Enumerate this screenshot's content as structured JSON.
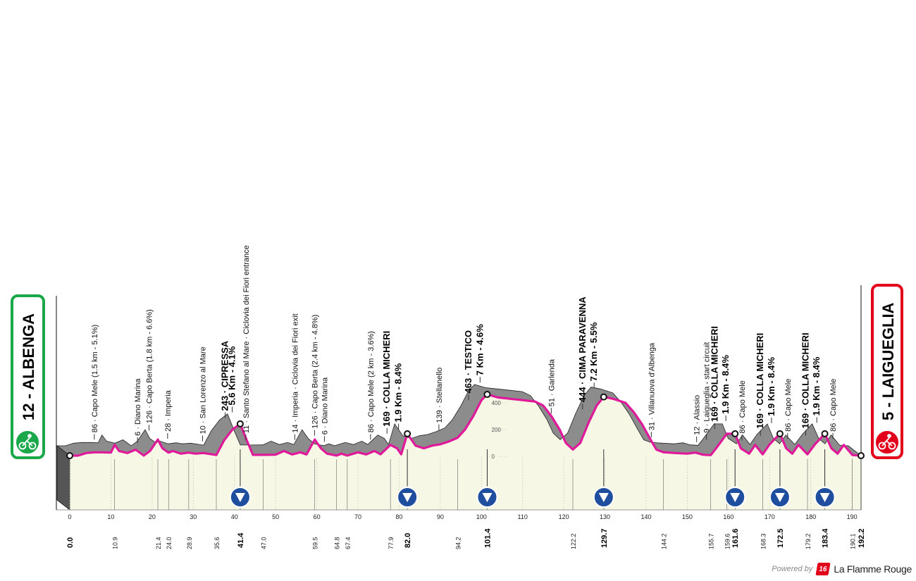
{
  "start": {
    "label": "12 - ALBENGA",
    "km": "0.0",
    "badge_color": "#1aa84a"
  },
  "finish": {
    "label": "5 - LAIGUEGLIA",
    "km": "192.2",
    "badge_color": "#e2001a"
  },
  "colors": {
    "profile": "#e0199a",
    "terrain": "#8c8c8c",
    "ground": "#f6f7e4",
    "badge_border_start": "#1aa84a",
    "badge_border_finish": "#e2001a"
  },
  "altitude_ticks": [
    "400",
    "200",
    "0"
  ],
  "km_ticks": [
    "0",
    "10",
    "20",
    "30",
    "40",
    "50",
    "60",
    "70",
    "80",
    "90",
    "100",
    "110",
    "120",
    "130",
    "140",
    "150",
    "160",
    "170",
    "180",
    "190"
  ],
  "waypoints": [
    {
      "km": 0.0,
      "label": "",
      "bold": false
    },
    {
      "km": 7.5,
      "label": "86 · Capo Mele (1.5 km - 5.1%)",
      "bold": false
    },
    {
      "km": 18.0,
      "label": "6 · Diano Marina",
      "bold": false
    },
    {
      "km": 20.8,
      "label": "126 · Capo Berta (1.8 km - 6.6%)",
      "bold": false
    },
    {
      "km": 25.3,
      "label": "28 · Imperia",
      "bold": false
    },
    {
      "km": 33.8,
      "label": "10 · San Lorenzo al Mare",
      "bold": false
    },
    {
      "km": 39.3,
      "label": "243 · CIPRESSA",
      "bold": true
    },
    {
      "km": 41.0,
      "label": "5.6 Km - 4.1%",
      "bold": true
    },
    {
      "km": 44.3,
      "label": "11 · Santo Stefano al Mare · Ciclovia dei Fiori entrance",
      "bold": false
    },
    {
      "km": 56.2,
      "label": "14 · Imperia · Ciclovia dei Fiori exit",
      "bold": false
    },
    {
      "km": 61.0,
      "label": "126 · Capo Berta (2.4 km - 4.8%)",
      "bold": false
    },
    {
      "km": 63.4,
      "label": "6 · Diano Marina",
      "bold": false
    },
    {
      "km": 74.6,
      "label": "86 · Capo Mele (2 km - 3.6%)",
      "bold": false
    },
    {
      "km": 78.6,
      "label": "169 · COLLA MICHERI",
      "bold": true
    },
    {
      "km": 81.4,
      "label": "1.9 Km - 8.4%",
      "bold": true
    },
    {
      "km": 91.2,
      "label": "139 · Stellanello",
      "bold": false
    },
    {
      "km": 98.4,
      "label": "463 · TESTICO",
      "bold": true
    },
    {
      "km": 101.2,
      "label": "7 Km - 4.6%",
      "bold": true
    },
    {
      "km": 118.5,
      "label": "51 · Garlenda",
      "bold": false
    },
    {
      "km": 126.1,
      "label": "444 · CIMA PARAVENNA",
      "bold": true
    },
    {
      "km": 128.9,
      "label": "7.2 Km - 5.5%",
      "bold": true
    },
    {
      "km": 142.8,
      "label": "31 · Villanuova d'Albenga",
      "bold": false
    },
    {
      "km": 153.8,
      "label": "12 · Alassio",
      "bold": false
    },
    {
      "km": 156.2,
      "label": "9 · Laigueglia - start circuit",
      "bold": false
    },
    {
      "km": 158.2,
      "label": "169 · COLLA MICHERI",
      "bold": true
    },
    {
      "km": 160.9,
      "label": "1.9 Km - 8.4%",
      "bold": true
    },
    {
      "km": 164.8,
      "label": "86 · Capo Mele",
      "bold": false
    },
    {
      "km": 169.3,
      "label": "169 · COLLA MICHERI",
      "bold": true
    },
    {
      "km": 172.0,
      "label": "1.9 Km - 8.4%",
      "bold": true
    },
    {
      "km": 175.9,
      "label": "86 · Capo Mele",
      "bold": false
    },
    {
      "km": 180.3,
      "label": "169 · COLLA MICHERI",
      "bold": true
    },
    {
      "km": 183.0,
      "label": "1.9 Km - 8.4%",
      "bold": true
    },
    {
      "km": 186.9,
      "label": "86 · Capo Mele",
      "bold": false
    }
  ],
  "km_markers": [
    {
      "km": 0.0,
      "label": "0.0",
      "bold": true
    },
    {
      "km": 10.9,
      "label": "10.9",
      "bold": false
    },
    {
      "km": 21.4,
      "label": "21.4",
      "bold": false
    },
    {
      "km": 24.0,
      "label": "24.0",
      "bold": false
    },
    {
      "km": 28.9,
      "label": "28.9",
      "bold": false
    },
    {
      "km": 35.6,
      "label": "35.6",
      "bold": false
    },
    {
      "km": 41.4,
      "label": "41.4",
      "bold": true
    },
    {
      "km": 47.0,
      "label": "47.0",
      "bold": false
    },
    {
      "km": 59.5,
      "label": "59.5",
      "bold": false
    },
    {
      "km": 64.8,
      "label": "64.8",
      "bold": false
    },
    {
      "km": 67.4,
      "label": "67.4",
      "bold": false
    },
    {
      "km": 77.9,
      "label": "77.9",
      "bold": false
    },
    {
      "km": 82.0,
      "label": "82.0",
      "bold": true
    },
    {
      "km": 94.2,
      "label": "94.2",
      "bold": false
    },
    {
      "km": 101.4,
      "label": "101.4",
      "bold": true
    },
    {
      "km": 122.2,
      "label": "122.2",
      "bold": false
    },
    {
      "km": 129.7,
      "label": "129.7",
      "bold": true
    },
    {
      "km": 144.2,
      "label": "144.2",
      "bold": false
    },
    {
      "km": 155.7,
      "label": "155.7",
      "bold": false
    },
    {
      "km": 159.6,
      "label": "159.6",
      "bold": false
    },
    {
      "km": 161.6,
      "label": "161.6",
      "bold": true
    },
    {
      "km": 168.3,
      "label": "168.3",
      "bold": false
    },
    {
      "km": 172.5,
      "label": "172.5",
      "bold": true
    },
    {
      "km": 179.2,
      "label": "179.2",
      "bold": false
    },
    {
      "km": 183.4,
      "label": "183.4",
      "bold": true
    },
    {
      "km": 190.1,
      "label": "190.1",
      "bold": false
    },
    {
      "km": 192.2,
      "label": "192.2",
      "bold": true
    }
  ],
  "climb_markers_km": [
    41.4,
    82.0,
    101.4,
    129.7,
    161.6,
    172.5,
    183.4
  ],
  "profile_points": [
    [
      0,
      5
    ],
    [
      2,
      5
    ],
    [
      4,
      25
    ],
    [
      6,
      30
    ],
    [
      8,
      30
    ],
    [
      10,
      28
    ],
    [
      10.9,
      86
    ],
    [
      12,
      40
    ],
    [
      14,
      25
    ],
    [
      16,
      50
    ],
    [
      18,
      6
    ],
    [
      19.5,
      40
    ],
    [
      21.4,
      126
    ],
    [
      22.5,
      60
    ],
    [
      24,
      28
    ],
    [
      25,
      40
    ],
    [
      27,
      20
    ],
    [
      28.9,
      28
    ],
    [
      30.5,
      20
    ],
    [
      32.5,
      25
    ],
    [
      35.6,
      10
    ],
    [
      37.5,
      120
    ],
    [
      39.5,
      200
    ],
    [
      41.4,
      243
    ],
    [
      43,
      120
    ],
    [
      44.5,
      11
    ],
    [
      47,
      11
    ],
    [
      50,
      12
    ],
    [
      52,
      40
    ],
    [
      54,
      14
    ],
    [
      56,
      30
    ],
    [
      57.5,
      14
    ],
    [
      59.5,
      126
    ],
    [
      61,
      60
    ],
    [
      62.5,
      20
    ],
    [
      64.8,
      6
    ],
    [
      66,
      20
    ],
    [
      67.4,
      6
    ],
    [
      70,
      30
    ],
    [
      72,
      14
    ],
    [
      74,
      40
    ],
    [
      75.5,
      15
    ],
    [
      77.9,
      86
    ],
    [
      79.5,
      60
    ],
    [
      80.5,
      15
    ],
    [
      82,
      169
    ],
    [
      84,
      80
    ],
    [
      86,
      60
    ],
    [
      88,
      80
    ],
    [
      90,
      90
    ],
    [
      92,
      110
    ],
    [
      94.2,
      139
    ],
    [
      96,
      200
    ],
    [
      98,
      300
    ],
    [
      100,
      420
    ],
    [
      101.4,
      463
    ],
    [
      104,
      440
    ],
    [
      107,
      430
    ],
    [
      110,
      420
    ],
    [
      113,
      410
    ],
    [
      115,
      380
    ],
    [
      117,
      300
    ],
    [
      119,
      200
    ],
    [
      120.5,
      100
    ],
    [
      122.2,
      51
    ],
    [
      124,
      100
    ],
    [
      126,
      250
    ],
    [
      128,
      380
    ],
    [
      129.7,
      444
    ],
    [
      132,
      430
    ],
    [
      135,
      400
    ],
    [
      137,
      330
    ],
    [
      139,
      240
    ],
    [
      141,
      130
    ],
    [
      142.5,
      50
    ],
    [
      144.2,
      31
    ],
    [
      147,
      25
    ],
    [
      150,
      20
    ],
    [
      152,
      28
    ],
    [
      153.8,
      12
    ],
    [
      155.7,
      9
    ],
    [
      157,
      60
    ],
    [
      159.6,
      169
    ],
    [
      161.6,
      169
    ],
    [
      163,
      60
    ],
    [
      165,
      20
    ],
    [
      166.5,
      86
    ],
    [
      168.3,
      15
    ],
    [
      170,
      90
    ],
    [
      172.5,
      169
    ],
    [
      174,
      60
    ],
    [
      175.5,
      20
    ],
    [
      177,
      86
    ],
    [
      179.2,
      15
    ],
    [
      181,
      90
    ],
    [
      183.4,
      169
    ],
    [
      185,
      60
    ],
    [
      186.5,
      20
    ],
    [
      188,
      86
    ],
    [
      190.1,
      10
    ],
    [
      192.2,
      5
    ]
  ]
}
